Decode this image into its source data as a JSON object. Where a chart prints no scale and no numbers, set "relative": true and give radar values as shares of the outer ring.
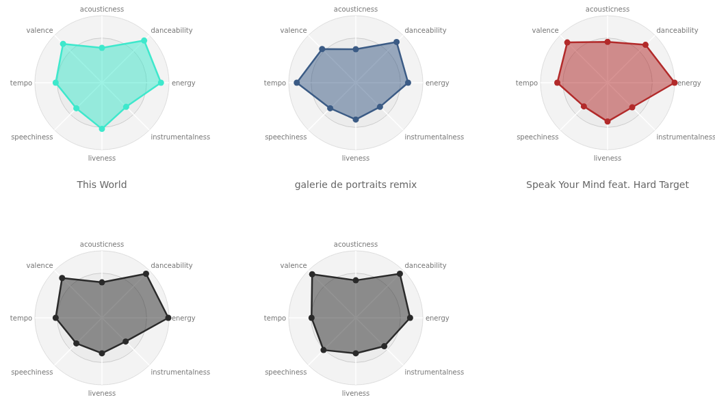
{
  "chart_data": [
    {
      "type": "radar",
      "title": "This World",
      "categories": [
        "acousticness",
        "danceability",
        "energy",
        "instrumentalness",
        "liveness",
        "speechiness",
        "tempo",
        "valence"
      ],
      "relative": true,
      "grid": true,
      "marker": "circle",
      "series": [
        {
          "color": "#3ee8cc",
          "values": [
            0.52,
            0.89,
            0.88,
            0.51,
            0.69,
            0.54,
            0.69,
            0.82
          ]
        }
      ]
    },
    {
      "type": "radar",
      "title": "galerie de portraits remix",
      "categories": [
        "acousticness",
        "danceability",
        "energy",
        "instrumentalness",
        "liveness",
        "speechiness",
        "tempo",
        "valence"
      ],
      "relative": true,
      "grid": true,
      "marker": "circle",
      "series": [
        {
          "color": "#3b5b85",
          "values": [
            0.5,
            0.86,
            0.78,
            0.51,
            0.55,
            0.54,
            0.88,
            0.71
          ]
        }
      ]
    },
    {
      "type": "radar",
      "title": "Speak Your Mind feat. Hard Target",
      "categories": [
        "acousticness",
        "danceability",
        "energy",
        "instrumentalness",
        "liveness",
        "speechiness",
        "tempo",
        "valence"
      ],
      "relative": true,
      "grid": true,
      "marker": "circle",
      "series": [
        {
          "color": "#b22a2a",
          "values": [
            0.61,
            0.8,
            1.0,
            0.52,
            0.58,
            0.5,
            0.75,
            0.85
          ]
        }
      ]
    },
    {
      "type": "radar",
      "categories": [
        "acousticness",
        "danceability",
        "energy",
        "instrumentalness",
        "liveness",
        "speechiness",
        "tempo",
        "valence"
      ],
      "relative": true,
      "grid": true,
      "marker": "circle",
      "series": [
        {
          "color": "#2a2a2a",
          "values": [
            0.53,
            0.93,
            0.99,
            0.5,
            0.53,
            0.54,
            0.69,
            0.84
          ]
        }
      ]
    },
    {
      "type": "radar",
      "categories": [
        "acousticness",
        "danceability",
        "energy",
        "instrumentalness",
        "liveness",
        "speechiness",
        "tempo",
        "valence"
      ],
      "relative": true,
      "grid": true,
      "marker": "circle",
      "series": [
        {
          "color": "#2a2a2a",
          "values": [
            0.56,
            0.93,
            0.81,
            0.6,
            0.53,
            0.68,
            0.66,
            0.92
          ]
        }
      ]
    }
  ]
}
